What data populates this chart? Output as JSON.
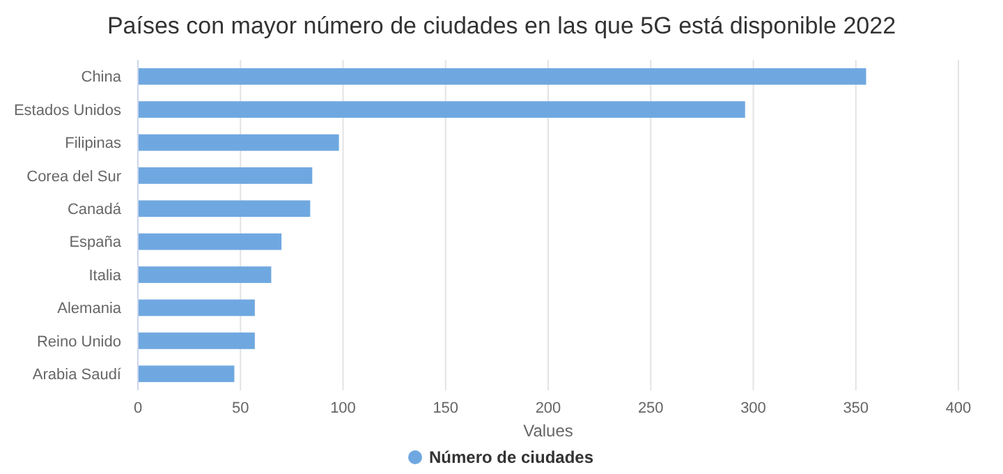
{
  "chart_data": {
    "type": "bar",
    "orientation": "horizontal",
    "title": "Países con mayor número de ciudades en las que 5G está disponible 2022",
    "xlabel": "Values",
    "categories": [
      "China",
      "Estados Unidos",
      "Filipinas",
      "Corea del Sur",
      "Canadá",
      "España",
      "Italia",
      "Alemania",
      "Reino Unido",
      "Arabia Saudí"
    ],
    "series": [
      {
        "name": "Número de ciudades",
        "color": "#6fa8e0",
        "values": [
          355,
          296,
          98,
          85,
          84,
          70,
          65,
          57,
          57,
          47
        ]
      }
    ],
    "xlim": [
      0,
      400
    ],
    "xticks": [
      0,
      50,
      100,
      150,
      200,
      250,
      300,
      350,
      400
    ],
    "grid": "x",
    "legend": "bottom"
  }
}
